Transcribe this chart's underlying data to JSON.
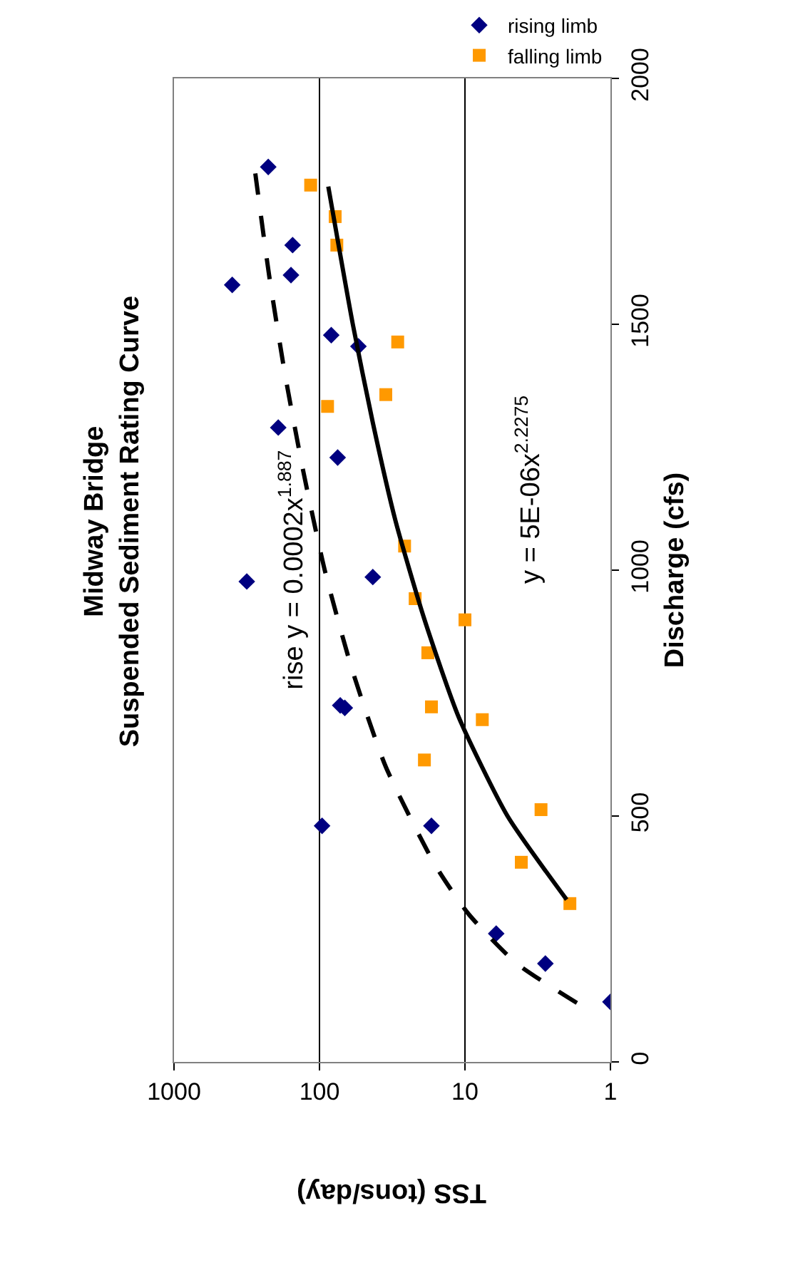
{
  "chart_data": {
    "type": "scatter",
    "title": "Midway Bridge\nSuspended Sediment Rating Curve",
    "xlabel": "TSS (tons/day)",
    "ylabel": "Discharge (cfs)",
    "xlim": [
      1000,
      1
    ],
    "xticks": [
      1000,
      100,
      10,
      1
    ],
    "ylim": [
      0,
      2000
    ],
    "yticks": [
      0,
      500,
      1000,
      1500,
      2000
    ],
    "log": "x",
    "grid": "x",
    "legend": "top right",
    "series": [
      {
        "name": "rising limb",
        "marker": "diamond",
        "color": "#000080",
        "x": [
          1,
          2.8,
          6.1,
          17,
          96,
          67,
          72,
          316,
          43,
          75,
          192,
          54,
          83,
          398,
          157,
          153,
          225
        ],
        "values": [
          122,
          200,
          261,
          480,
          480,
          720,
          725,
          977,
          986,
          1229,
          1290,
          1455,
          1478,
          1580,
          1600,
          1661,
          1820
        ]
      },
      {
        "name": "falling limb",
        "marker": "square",
        "color": "#ff9900",
        "x": [
          1.9,
          4.1,
          3.0,
          19,
          7.6,
          17,
          18,
          10,
          22,
          26,
          88,
          35,
          29,
          76,
          78,
          115
        ],
        "values": [
          322,
          406,
          513,
          614,
          696,
          722,
          832,
          899,
          942,
          1049,
          1333,
          1357,
          1464,
          1661,
          1719,
          1783
        ]
      },
      {
        "type": "line",
        "line_style": "dashed",
        "color": "#000000",
        "x": [
          1.7,
          4.4,
          9.4,
          16,
          35,
          60,
          92,
          129,
          173,
          222,
          280
        ],
        "values": [
          120,
          200,
          300,
          400,
          600,
          800,
          1000,
          1200,
          1400,
          1600,
          1820
        ]
      },
      {
        "type": "line",
        "line_style": "solid",
        "color": "#000000",
        "x": [
          2.0,
          5.1,
          11,
          19,
          30,
          43,
          59,
          87
        ],
        "values": [
          330,
          500,
          700,
          900,
          1100,
          1300,
          1500,
          1780
        ]
      }
    ],
    "annotations": [
      "rise y = 0.0002x$^{1.887}$",
      "y = 5E-06x$^{2.2275}$"
    ]
  }
}
